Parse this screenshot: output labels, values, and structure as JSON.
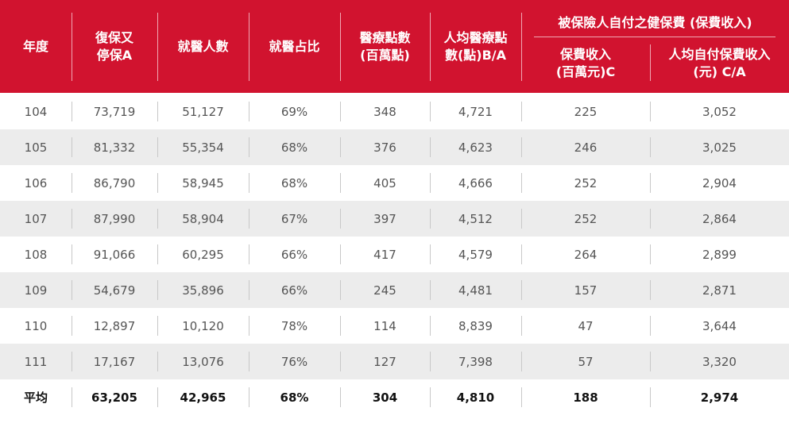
{
  "headers": {
    "year": "年度",
    "suspend": "復保又\n停保A",
    "visits": "就醫人數",
    "ratio": "就醫占比",
    "points": "醫療點數\n(百萬點)",
    "per_capita_points": "人均醫療點\n數(點)B/A",
    "group": "被保險人自付之健保費 (保費收入)",
    "premium": "保費收入\n(百萬元)C",
    "per_capita_premium": "人均自付保費收入\n(元) C/A"
  },
  "rows": [
    {
      "year": "104",
      "suspend": "73,719",
      "visits": "51,127",
      "ratio": "69%",
      "points": "348",
      "per_capita_points": "4,721",
      "premium": "225",
      "per_capita_premium": "3,052"
    },
    {
      "year": "105",
      "suspend": "81,332",
      "visits": "55,354",
      "ratio": "68%",
      "points": "376",
      "per_capita_points": "4,623",
      "premium": "246",
      "per_capita_premium": "3,025"
    },
    {
      "year": "106",
      "suspend": "86,790",
      "visits": "58,945",
      "ratio": "68%",
      "points": "405",
      "per_capita_points": "4,666",
      "premium": "252",
      "per_capita_premium": "2,904"
    },
    {
      "year": "107",
      "suspend": "87,990",
      "visits": "58,904",
      "ratio": "67%",
      "points": "397",
      "per_capita_points": "4,512",
      "premium": "252",
      "per_capita_premium": "2,864"
    },
    {
      "year": "108",
      "suspend": "91,066",
      "visits": "60,295",
      "ratio": "66%",
      "points": "417",
      "per_capita_points": "4,579",
      "premium": "264",
      "per_capita_premium": "2,899"
    },
    {
      "year": "109",
      "suspend": "54,679",
      "visits": "35,896",
      "ratio": "66%",
      "points": "245",
      "per_capita_points": "4,481",
      "premium": "157",
      "per_capita_premium": "2,871"
    },
    {
      "year": "110",
      "suspend": "12,897",
      "visits": "10,120",
      "ratio": "78%",
      "points": "114",
      "per_capita_points": "8,839",
      "premium": "47",
      "per_capita_premium": "3,644"
    },
    {
      "year": "111",
      "suspend": "17,167",
      "visits": "13,076",
      "ratio": "76%",
      "points": "127",
      "per_capita_points": "7,398",
      "premium": "57",
      "per_capita_premium": "3,320"
    },
    {
      "year": "平均",
      "suspend": "63,205",
      "visits": "42,965",
      "ratio": "68%",
      "points": "304",
      "per_capita_points": "4,810",
      "premium": "188",
      "per_capita_premium": "2,974"
    }
  ],
  "colors": {
    "header_bg": "#d1132f",
    "alt_row_bg": "#ececec"
  }
}
